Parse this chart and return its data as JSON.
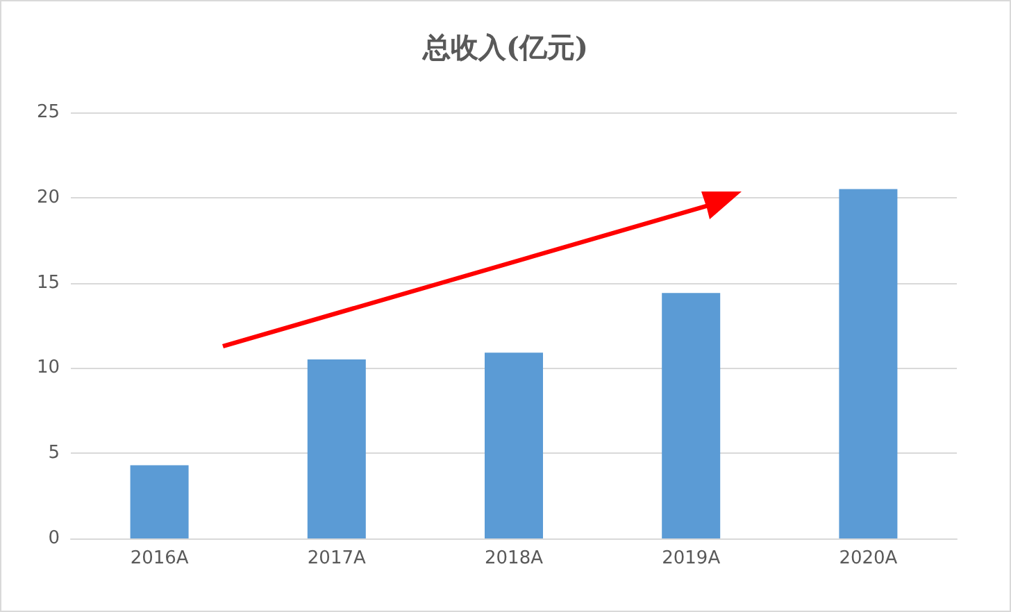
{
  "chart_data": {
    "type": "bar",
    "title": "总收入(亿元)",
    "categories": [
      "2016A",
      "2017A",
      "2018A",
      "2019A",
      "2020A"
    ],
    "values": [
      4.3,
      10.5,
      10.9,
      14.4,
      20.5
    ],
    "color": "#5b9bd5",
    "ylim": [
      0,
      25
    ],
    "yticks": [
      0,
      5,
      10,
      15,
      20,
      25
    ],
    "grid": "y"
  }
}
